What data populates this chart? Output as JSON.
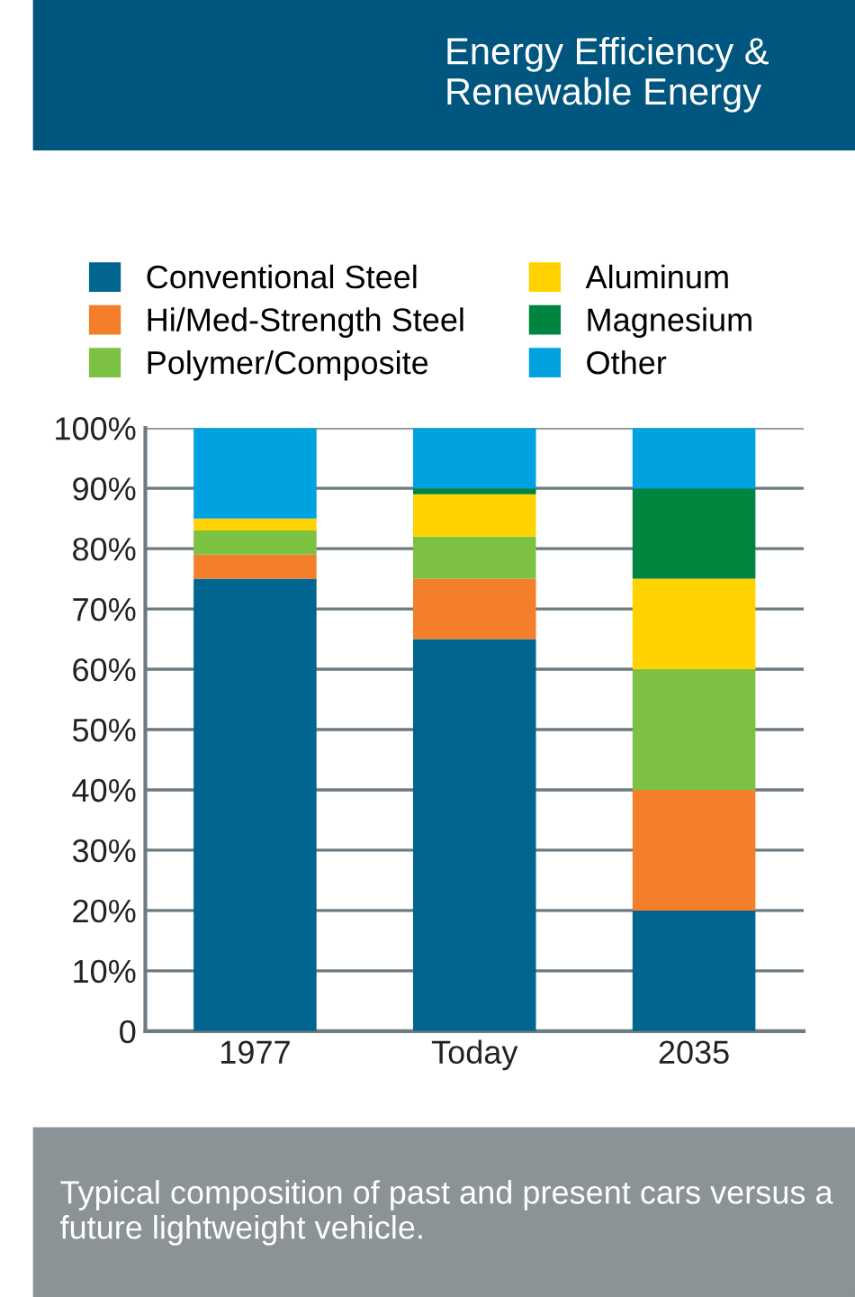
{
  "chart_data": {
    "type": "bar",
    "stacked": true,
    "title": "Energy Efficiency & Renewable Energy",
    "categories": [
      "1977",
      "Today",
      "2035"
    ],
    "series": [
      {
        "name": "Conventional Steel",
        "color": "#00668f",
        "values": [
          75,
          65,
          20
        ]
      },
      {
        "name": "Hi/Med-Strength Steel",
        "color": "#f47f2a",
        "values": [
          4,
          10,
          20
        ]
      },
      {
        "name": "Polymer/Composite",
        "color": "#7dc142",
        "values": [
          4,
          7,
          20
        ]
      },
      {
        "name": "Aluminum",
        "color": "#ffd200",
        "values": [
          2,
          7,
          15
        ]
      },
      {
        "name": "Magnesium",
        "color": "#008540",
        "values": [
          0,
          1,
          15
        ]
      },
      {
        "name": "Other",
        "color": "#00a3e0",
        "values": [
          15,
          10,
          10
        ]
      }
    ],
    "ylim": [
      0,
      100
    ],
    "yticks": [
      {
        "value": 0,
        "label": "0"
      },
      {
        "value": 10,
        "label": "10%"
      },
      {
        "value": 20,
        "label": "20%"
      },
      {
        "value": 30,
        "label": "30%"
      },
      {
        "value": 40,
        "label": "40%"
      },
      {
        "value": 50,
        "label": "50%"
      },
      {
        "value": 60,
        "label": "60%"
      },
      {
        "value": 70,
        "label": "70%"
      },
      {
        "value": 80,
        "label": "80%"
      },
      {
        "value": 90,
        "label": "90%"
      },
      {
        "value": 100,
        "label": "100%"
      }
    ],
    "grid": "y",
    "legend": "top",
    "annotations": [
      "Typical composition of past and present cars versus a future lightweight vehicle."
    ]
  }
}
